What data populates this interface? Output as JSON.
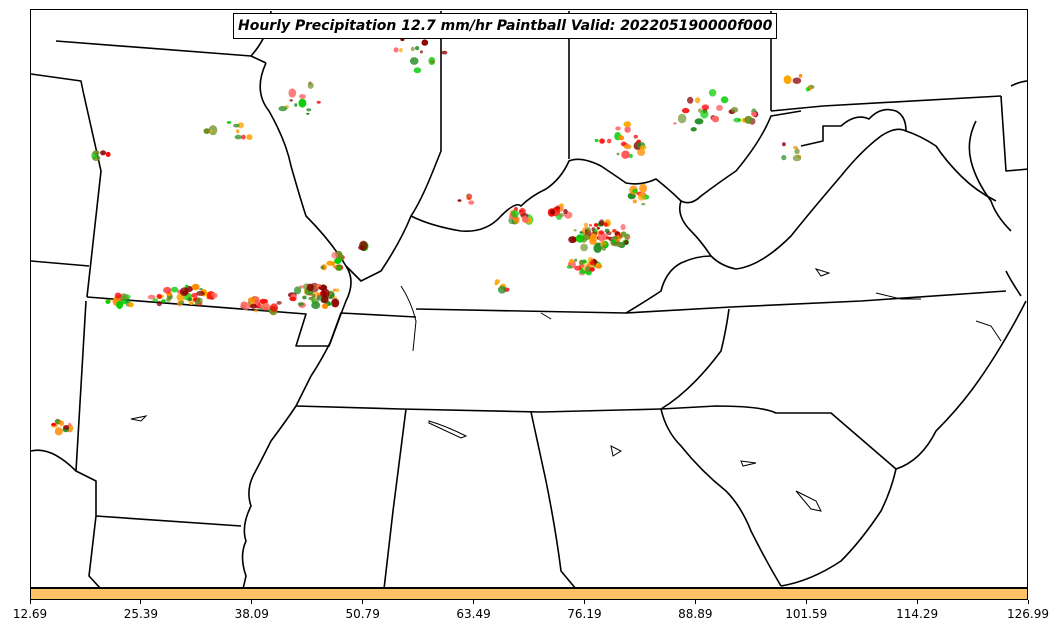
{
  "title": "Hourly Precipitation 12.7 mm/hr Paintball Valid: 202205190000f000",
  "colorbar": {
    "color": "#ffc266",
    "ticks": [
      "12.69",
      "25.39",
      "38.09",
      "50.79",
      "63.49",
      "76.19",
      "88.89",
      "101.59",
      "114.29",
      "126.99"
    ]
  },
  "paintball_colors": [
    "#ff0000",
    "#ff8c00",
    "#00cc00",
    "#8b0000",
    "#6b8e23",
    "#ffa500",
    "#ff6666",
    "#228b22"
  ]
}
